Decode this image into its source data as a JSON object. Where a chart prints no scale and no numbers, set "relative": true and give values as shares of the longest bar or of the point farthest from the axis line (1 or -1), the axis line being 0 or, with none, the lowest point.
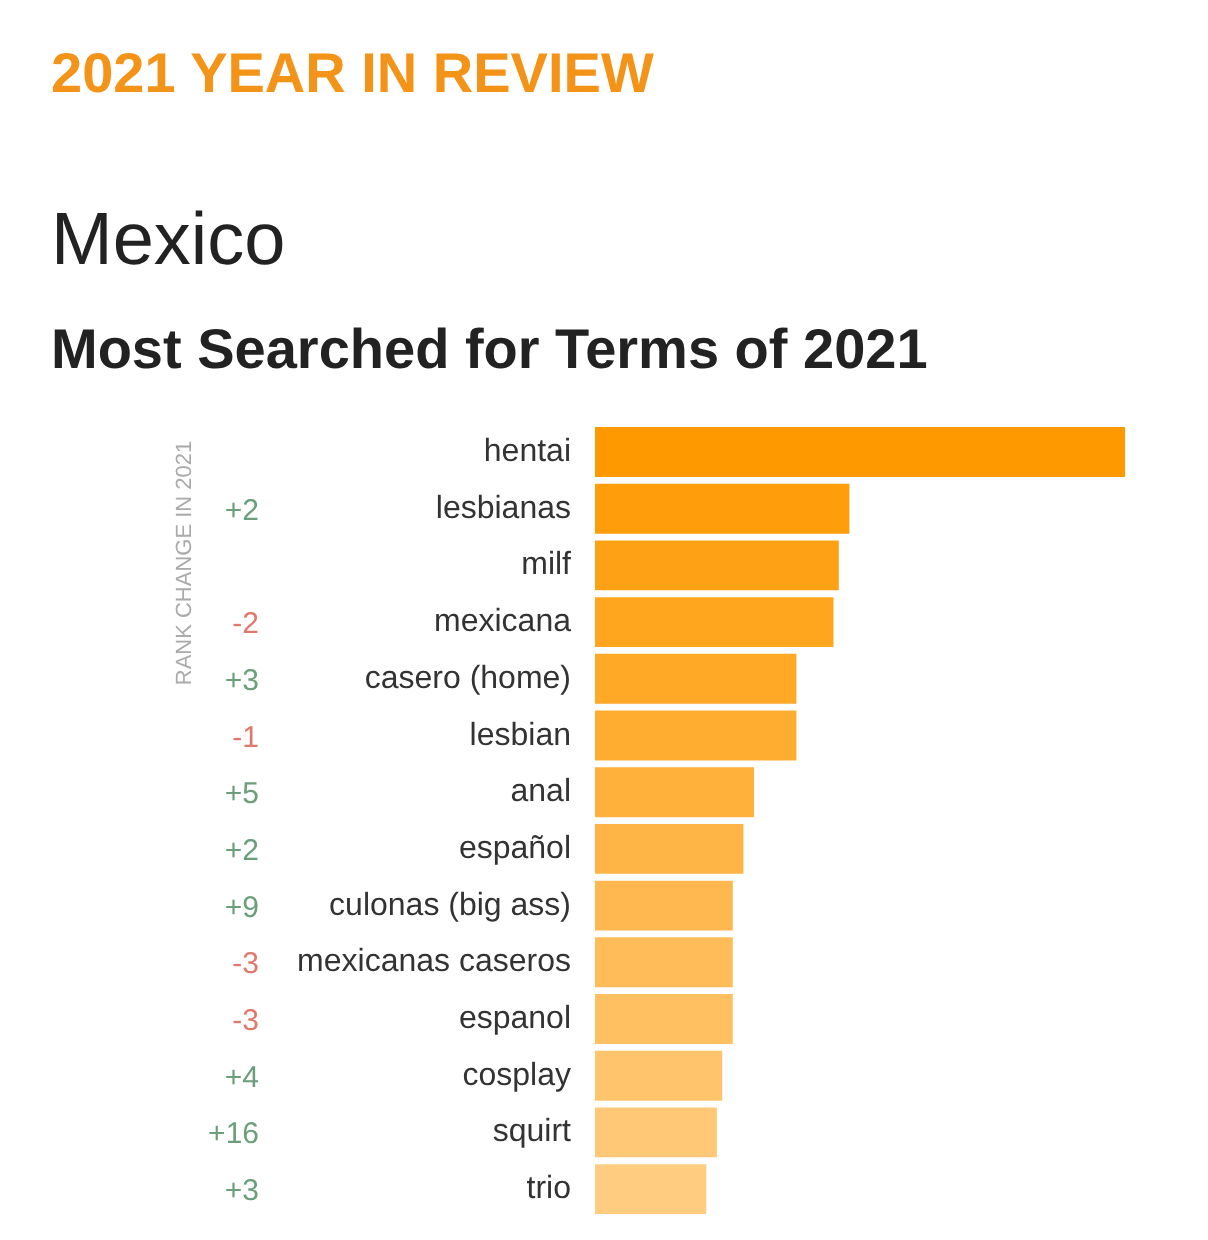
{
  "chart_data": {
    "type": "bar",
    "orientation": "horizontal",
    "relative": true,
    "title": "Most Searched for Terms of 2021",
    "subtitle": "Mexico",
    "categories": [
      "hentai",
      "lesbianas",
      "milf",
      "mexicana",
      "casero (home)",
      "lesbian",
      "anal",
      "español",
      "culonas (big ass)",
      "mexicanas caseros",
      "espanol",
      "cosplay",
      "squirt",
      "trio"
    ],
    "y2_categories": [
      null,
      "+2",
      null,
      "-2",
      "+3",
      "-1",
      "+5",
      "+2",
      "+9",
      "-3",
      "-3",
      "+4",
      "+16",
      "+3"
    ],
    "values": [
      1,
      0.48,
      0.46,
      0.45,
      0.38,
      0.38,
      0.3,
      0.28,
      0.26,
      0.26,
      0.26,
      0.24,
      0.23,
      0.21
    ],
    "colors": [
      "#ff9900",
      "#ff9d0a",
      "#ffa114",
      "#ffa51e",
      "#ffa927",
      "#ffad31",
      "#ffb13b",
      "#ffb445",
      "#ffb84f",
      "#ffbc59",
      "#ffc062",
      "#ffc46c",
      "#ffc876",
      "#ffcc80"
    ],
    "annotations": [
      "2021 YEAR IN REVIEW",
      "RANK CHANGE IN 2021"
    ]
  }
}
